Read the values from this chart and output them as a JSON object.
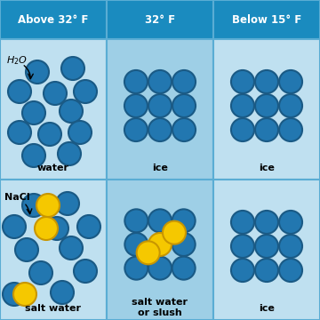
{
  "header_bg": "#1a8bbf",
  "header_text_color": "#ffffff",
  "cell_bg_col0": "#bfe0f0",
  "cell_bg_col1": "#9ecfe6",
  "cell_bg_col2": "#bfe0f0",
  "border_color": "#5aadd4",
  "blue_circle_fill": "#2277b0",
  "blue_circle_edge": "#1a5a85",
  "yellow_circle_fill": "#f5c800",
  "yellow_circle_edge": "#c89600",
  "headers": [
    "Above 32° F",
    "32° F",
    "Below 15° F"
  ],
  "label_water": "water",
  "label_ice1": "ice",
  "label_ice2": "ice",
  "label_salt_water": "salt water",
  "label_slush": "salt water\nor slush",
  "label_ice3": "ice",
  "fig_bg": "#5aadd4"
}
